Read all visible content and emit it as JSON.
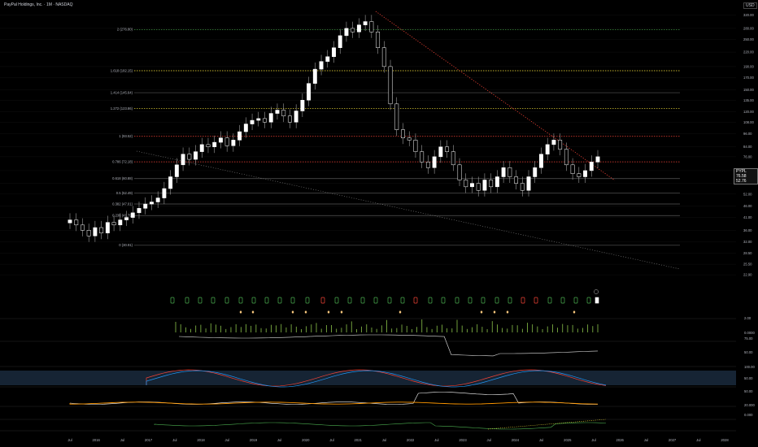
{
  "header": {
    "title": "PayPal Holdings, Inc. · 1M · NASDAQ",
    "currency": "USD"
  },
  "price_tag": {
    "symbol": "PYPL",
    "price": "76.58",
    "change": "52.76"
  },
  "price_axis": [
    "320.00",
    "280.00",
    "250.00",
    "220.00",
    "190.00",
    "170.00",
    "150.00",
    "135.00",
    "120.00",
    "108.00",
    "96.00",
    "84.00",
    "76.00",
    "66.00",
    "58.00",
    "52.00",
    "46.00",
    "41.00",
    "36.00",
    "32.00",
    "28.50",
    "25.50",
    "22.90"
  ],
  "fib_levels": [
    {
      "label": "2 (276.80)",
      "value": "276.80",
      "color": "#4caf50",
      "dashed": true
    },
    {
      "label": "1.618 (182.15)",
      "value": "182.15",
      "color": "#ffeb3b",
      "dashed": true
    },
    {
      "label": "1.414 (145.64)",
      "value": "145.64",
      "color": "#9e9e9e",
      "dashed": false
    },
    {
      "label": "1.272 (123.86)",
      "value": "123.86",
      "color": "#ffeb3b",
      "dashed": true
    },
    {
      "label": "1 (93.52)",
      "value": "93.52",
      "color": "#f44336",
      "dashed": true
    },
    {
      "label": "0.786 (72.18)",
      "value": "72.18",
      "color": "#f44336",
      "dashed": true
    },
    {
      "label": "0.618 (60.88)",
      "value": "60.88",
      "color": "#9e9e9e",
      "dashed": false
    },
    {
      "label": "0.5 (52.49)",
      "value": "52.49",
      "color": "#9e9e9e",
      "dashed": false
    },
    {
      "label": "0.382 (47.01)",
      "value": "47.01",
      "color": "#9e9e9e",
      "dashed": false
    },
    {
      "label": "0.236 (41.79)",
      "value": "41.79",
      "color": "#9e9e9e",
      "dashed": false
    },
    {
      "label": "0 (30.91)",
      "value": "30.91",
      "color": "#9e9e9e",
      "dashed": false
    }
  ],
  "time_axis": [
    "Jul",
    "2016",
    "Jul",
    "2017",
    "Jul",
    "2018",
    "Jul",
    "2019",
    "Jul",
    "2020",
    "Jul",
    "2021",
    "Jul",
    "2022",
    "Jul",
    "2023",
    "Jul",
    "2024",
    "Jul",
    "2025",
    "Jul",
    "2026",
    "Jul",
    "2027",
    "Jul",
    "2028"
  ],
  "indicator_axes": {
    "volume": [
      "2.00",
      "0.0000"
    ],
    "rsi": [
      "75.00",
      "50.00"
    ],
    "stoch": [
      "100.00",
      "50.00"
    ],
    "adx": [
      "50.00"
    ],
    "macd": [
      "20.000",
      "0.000"
    ]
  },
  "colors": {
    "up": "#ffffff",
    "down": "#ffffff",
    "background": "#000000",
    "grid": "#1e1e1e",
    "trend": "#f44336",
    "volume": "#8bc34a",
    "signal_green": "#4caf50",
    "signal_red": "#f44336",
    "diamond": "#ffcc80",
    "rsi_band": "#1a2a3d"
  }
}
